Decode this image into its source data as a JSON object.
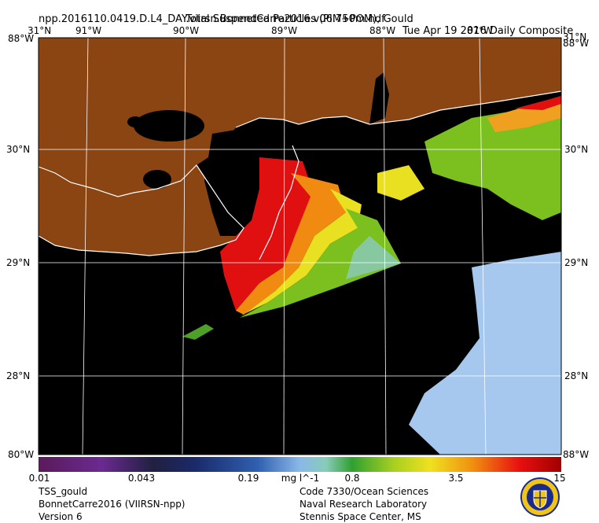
{
  "header": {
    "line1_left": "npp.2016110.0419.D.L4_DAY.viirsn.BonnetCarre2016.v06.750m.hdf",
    "line1_right": "Tue Apr 19 2016 Daily Composite",
    "line2": "Total Suspended Particles (PIM+POM), Gould"
  },
  "map": {
    "top_lon_labels": [
      "91°W",
      "90°W",
      "89°W",
      "88°W",
      "87°W"
    ],
    "corner_top_left": "31°N",
    "corner_top_right": "31°N",
    "left_lat_labels": [
      "30°N",
      "29°N",
      "28°N"
    ],
    "right_lat_labels": [
      "30°N",
      "29°N",
      "28°N"
    ],
    "overprint_left_top": "88°W",
    "overprint_right_top": "88°W",
    "overprint_left_bottom": "80°W",
    "overprint_right_bottom": "88°W",
    "colors": {
      "land": "#8b4513",
      "no_data": "#000000",
      "coast": "#ffffff",
      "grid": "#ffffff",
      "clear_water": "#a6c8ee",
      "plume_green": "#7cc020",
      "plume_yellow": "#e8e020",
      "plume_orange": "#f08a10",
      "plume_red": "#e01010"
    }
  },
  "colorbar": {
    "tick_labels": [
      "0.01",
      "0.043",
      "0.19",
      "0.8",
      "3.5",
      "15"
    ],
    "units": "mg l^-1",
    "scale": "log"
  },
  "footer": {
    "left": [
      "TSS_gould",
      "BonnetCarre2016 (VIIRSN-npp)",
      "Version 6"
    ],
    "right": [
      "Code 7330/Ocean Sciences",
      "Naval Research Laboratory",
      "Stennis Space Center, MS"
    ]
  },
  "seal": {
    "icon": "nrl-seal-icon",
    "colors": {
      "ring": "#f0c419",
      "inner": "#1a2b8c"
    }
  }
}
